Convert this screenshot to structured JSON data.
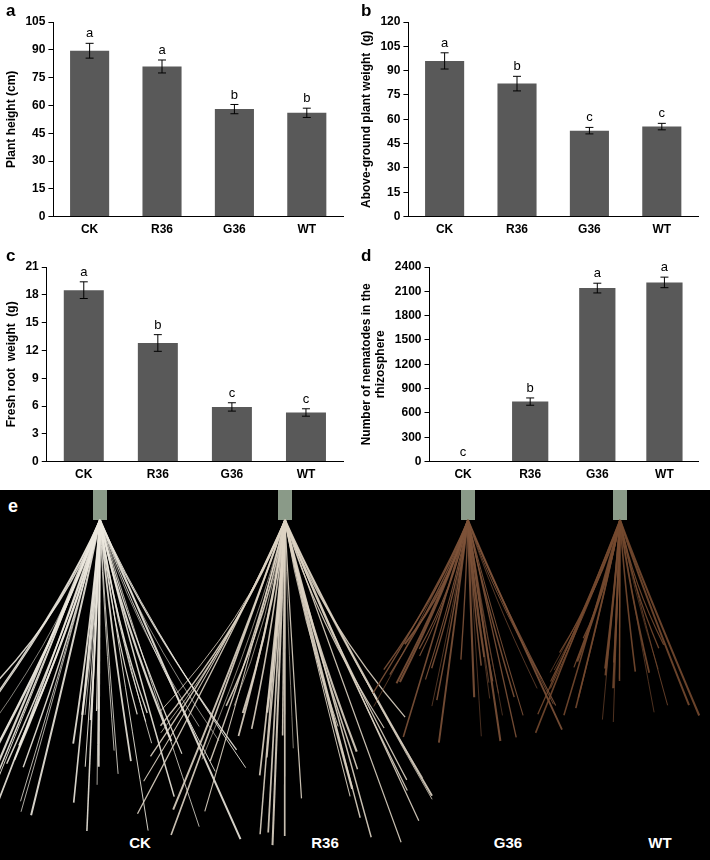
{
  "chart_data": [
    {
      "type": "bar",
      "title": "a",
      "y_label": "Plant height (cm)",
      "categories": [
        "CK",
        "R36",
        "G36",
        "WT"
      ],
      "values": [
        89.5,
        81,
        58,
        56
      ],
      "errors": [
        4,
        3.5,
        2.5,
        2.5
      ],
      "letters": [
        "a",
        "a",
        "b",
        "b"
      ],
      "color": "#595959",
      "ylim": [
        0,
        105
      ],
      "yticks": [
        0,
        15,
        30,
        45,
        60,
        75,
        90,
        105
      ],
      "grid": false
    },
    {
      "type": "bar",
      "title": "b",
      "y_label": "Above-ground plant weight  (g)",
      "categories": [
        "CK",
        "R36",
        "G36",
        "WT"
      ],
      "values": [
        96,
        82,
        53,
        55.5
      ],
      "errors": [
        5,
        4.5,
        2,
        2
      ],
      "letters": [
        "a",
        "b",
        "c",
        "c"
      ],
      "color": "#595959",
      "ylim": [
        0,
        120
      ],
      "yticks": [
        0,
        15,
        30,
        45,
        60,
        75,
        90,
        105,
        120
      ],
      "grid": false
    },
    {
      "type": "bar",
      "title": "c",
      "y_label": "Fresh root  weight  (g)",
      "categories": [
        "CK",
        "R36",
        "G36",
        "WT"
      ],
      "values": [
        18.5,
        12.8,
        5.9,
        5.3
      ],
      "errors": [
        0.9,
        0.9,
        0.45,
        0.4
      ],
      "letters": [
        "a",
        "b",
        "c",
        "c"
      ],
      "color": "#595959",
      "ylim": [
        0,
        21
      ],
      "yticks": [
        0,
        3,
        6,
        9,
        12,
        15,
        18,
        21
      ],
      "grid": false
    },
    {
      "type": "bar",
      "title": "d",
      "y_label": [
        "Number of nematodes in the",
        "rhizosphere"
      ],
      "categories": [
        "CK",
        "R36",
        "G36",
        "WT"
      ],
      "values": [
        0,
        740,
        2140,
        2210
      ],
      "errors": [
        0,
        45,
        60,
        65
      ],
      "letters": [
        "c",
        "b",
        "a",
        "a"
      ],
      "color": "#595959",
      "ylim": [
        0,
        2400
      ],
      "yticks": [
        0,
        300,
        600,
        900,
        1200,
        1500,
        1800,
        2100,
        2400
      ],
      "grid": false
    }
  ],
  "photo": {
    "title": "e",
    "labels": [
      "CK",
      "R36",
      "G36",
      "WT"
    ]
  }
}
